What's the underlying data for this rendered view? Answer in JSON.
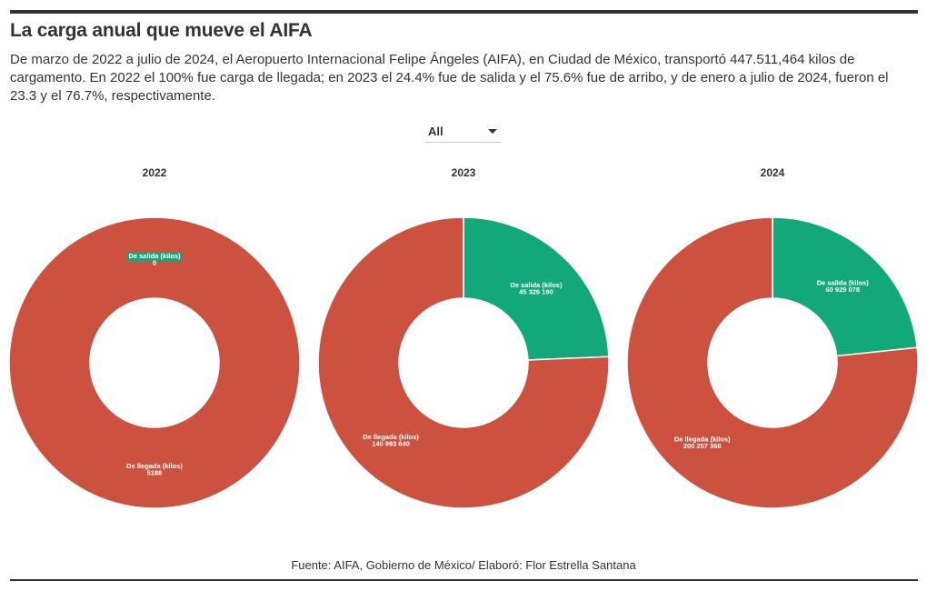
{
  "header": {
    "title": "La carga anual que mueve el AIFA",
    "subtitle": "De marzo de 2022 a julio de 2024, el Aeropuerto Internacional Felipe Ángeles (AIFA), en Ciudad de México, transportó 447.511,464 kilos de cargamento. En 2022 el 100% fue carga de llegada; en 2023 el 24.4% fue de salida y el 75.6% fue de arribo, y de enero a julio de 2024, fueron el 23.3 y el 76.7%, respectivamente."
  },
  "filter": {
    "selected": "All"
  },
  "colors": {
    "salida": "#13a87a",
    "llegada": "#cc513f"
  },
  "chart_data": [
    {
      "type": "pie",
      "title": "2022",
      "categories": [
        "De salida (kilos)",
        "De llegada (kilos)"
      ],
      "values": [
        0,
        5188
      ],
      "value_labels": [
        "0",
        "5188"
      ]
    },
    {
      "type": "pie",
      "title": "2023",
      "categories": [
        "De salida (kilos)",
        "De llegada (kilos)"
      ],
      "values": [
        45326190,
        140993640
      ],
      "value_labels": [
        "45 326 190",
        "140 993 640"
      ]
    },
    {
      "type": "pie",
      "title": "2024",
      "categories": [
        "De salida (kilos)",
        "De llegada (kilos)"
      ],
      "values": [
        60929078,
        200257368
      ],
      "value_labels": [
        "60 929 078",
        "200 257 368"
      ]
    }
  ],
  "footer": {
    "source": "Fuente: AIFA, Gobierno de México/ Elaboró: Flor Estrella Santana"
  }
}
